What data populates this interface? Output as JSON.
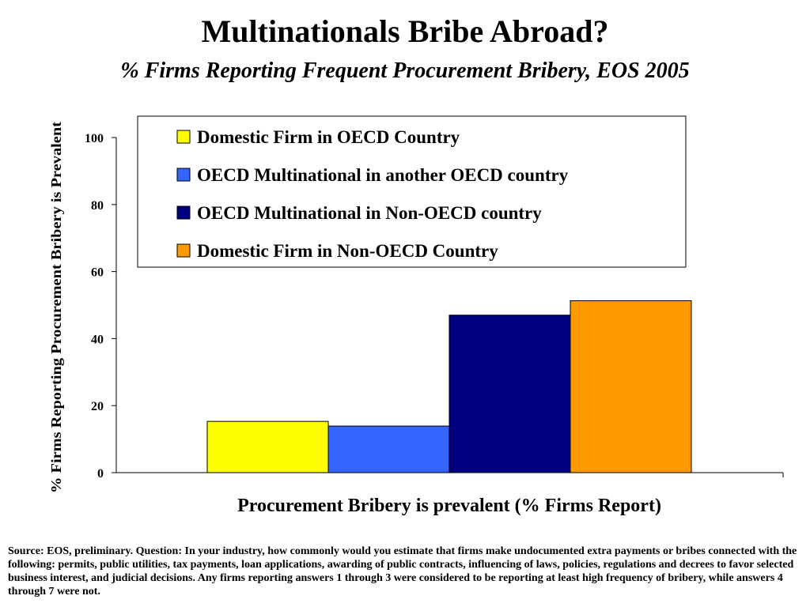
{
  "title": "Multinationals Bribe Abroad?",
  "subtitle": "% Firms Reporting Frequent Procurement Bribery, EOS 2005",
  "footnote": "Source: EOS, preliminary.   Question: In your industry, how commonly would you estimate that firms make undocumented extra payments or bribes connected with the following: permits, public utilities, tax payments, loan applications, awarding of public contracts, influencing of laws, policies, regulations and decrees to favor selected business interest, and judicial decisions.  Any firms reporting answers 1 through 3 were considered to be reporting at least high frequency of bribery, while answers 4 through 7 were not.",
  "chart_data": {
    "type": "bar",
    "categories": [
      "Procurement Bribery is prevalent (% Firms Report)"
    ],
    "series": [
      {
        "name": "Domestic Firm in OECD Country",
        "values": [
          15.3
        ],
        "color": "#FFFF00"
      },
      {
        "name": "OECD Multinational in another OECD country",
        "values": [
          13.9
        ],
        "color": "#3366FF"
      },
      {
        "name": "OECD Multinational in Non-OECD country",
        "values": [
          47.0
        ],
        "color": "#000080"
      },
      {
        "name": "Domestic Firm in Non-OECD Country",
        "values": [
          51.3
        ],
        "color": "#FF9900"
      }
    ],
    "xlabel": "Procurement Bribery is prevalent (% Firms Report)",
    "ylabel": "% Firms Reporting Procurement Bribery is Prevalent",
    "ylim": [
      0,
      100
    ],
    "yticks": [
      0,
      20,
      40,
      60,
      80,
      100
    ],
    "legend_position": "top-right",
    "grid": false
  }
}
